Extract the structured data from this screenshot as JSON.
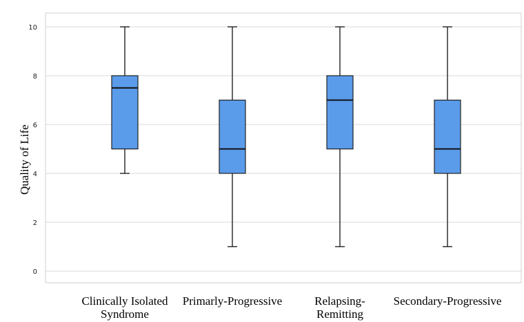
{
  "chart_data": {
    "type": "boxplot",
    "title": "",
    "ylabel": "Quality of Life",
    "xlabel": "",
    "ylim": [
      0,
      10
    ],
    "yticks": [
      0,
      2,
      4,
      6,
      8,
      10
    ],
    "grid": true,
    "box_color": "#5a9bea",
    "categories": [
      {
        "label": [
          "Clinically Isolated",
          "Syndrome"
        ],
        "min": 4,
        "q1": 5,
        "median": 7.5,
        "q3": 8,
        "max": 10
      },
      {
        "label": [
          "Primarly-Progressive"
        ],
        "min": 1,
        "q1": 4,
        "median": 5,
        "q3": 7,
        "max": 10
      },
      {
        "label": [
          "Relapsing-",
          "Remitting"
        ],
        "min": 1,
        "q1": 5,
        "median": 7,
        "q3": 8,
        "max": 10
      },
      {
        "label": [
          "Secondary-Progressive"
        ],
        "min": 1,
        "q1": 4,
        "median": 5,
        "q3": 7,
        "max": 10
      }
    ]
  }
}
